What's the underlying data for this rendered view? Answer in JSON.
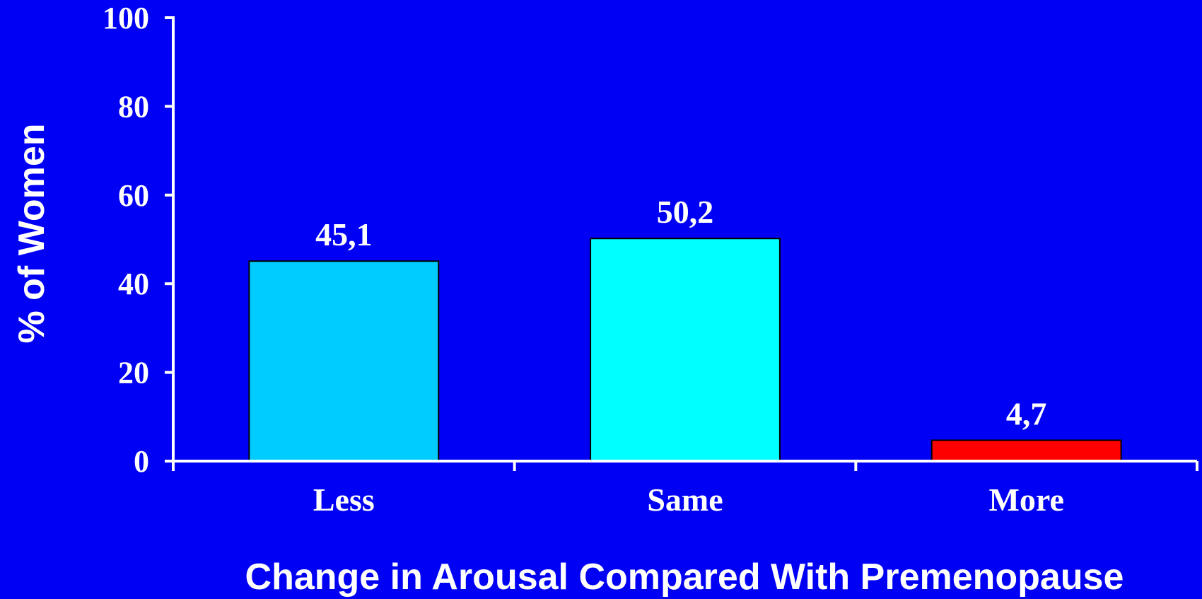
{
  "chart_data": {
    "type": "bar",
    "categories": [
      "Less",
      "Same",
      "More"
    ],
    "values": [
      45.1,
      50.2,
      4.7
    ],
    "value_labels": [
      "45,1",
      "50,2",
      "4,7"
    ],
    "colors": [
      "#00CCFF",
      "#00FFFF",
      "#FF0000"
    ],
    "ylabel": "% of Women",
    "xlabel": "Change in Arousal Compared With Premenopause",
    "ylim": [
      0,
      100
    ],
    "yticks": [
      0,
      20,
      40,
      60,
      80,
      100
    ],
    "grid": false,
    "legend": "none"
  },
  "colors": {
    "background": "#0000F5",
    "axis": "#FFFFFF",
    "text": "#FFFFFF",
    "bar_border": "#000000"
  }
}
